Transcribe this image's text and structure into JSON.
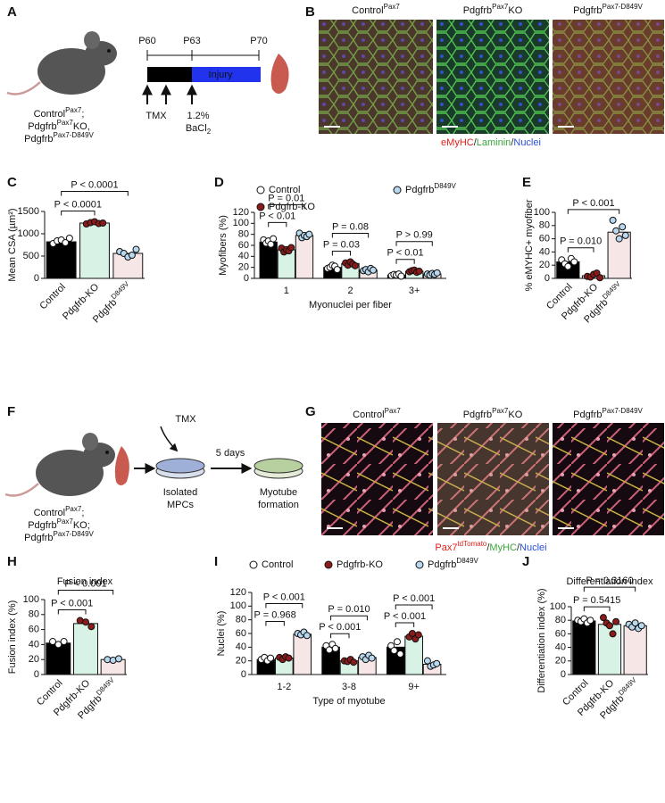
{
  "figure": {
    "panel_labels": [
      "A",
      "B",
      "C",
      "D",
      "E",
      "F",
      "G",
      "H",
      "I",
      "J"
    ],
    "panel_a": {
      "timepoints": [
        "P60",
        "P63",
        "P70"
      ],
      "injury": "Injury",
      "tmx": "TMX",
      "bacl2": {
        "text": "1.2%",
        "line2": "BaCl",
        "sub": "2"
      },
      "mouse_label": [
        {
          "text": "Control",
          "sup": "Pax7",
          "tail": ";"
        },
        {
          "text": "Pdgfrb",
          "sup": "Pax7",
          "tail": "KO,"
        },
        {
          "text": "Pdgfrb",
          "sup": "Pax7-D849V"
        }
      ]
    },
    "panel_b": {
      "labels": [
        {
          "text": "Control",
          "sup": "Pax7"
        },
        {
          "text": "Pdgfrb",
          "sup": "Pax7",
          "tail": "KO"
        },
        {
          "text": "Pdgfrb",
          "sup": "Pax7-D849V"
        }
      ],
      "caption": [
        {
          "text": "eMyHC",
          "color": "#e0201b"
        },
        {
          "text": "/",
          "color": "#222222"
        },
        {
          "text": "Laminin",
          "color": "#3aa53a"
        },
        {
          "text": "/",
          "color": "#222222"
        },
        {
          "text": "Nuclei",
          "color": "#2a4fd6"
        }
      ]
    },
    "panel_f": {
      "tmx": "TMX",
      "days": "5 days",
      "isolated": [
        "Isolated",
        "MPCs"
      ],
      "myotube": [
        "Myotube",
        "formation"
      ],
      "mouse_label": [
        {
          "text": "Control",
          "sup": "Pax7",
          "tail": ";"
        },
        {
          "text": "Pdgfrb",
          "sup": "Pax7",
          "tail": "KO;"
        },
        {
          "text": "Pdgfrb",
          "sup": "Pax7-D849V"
        }
      ]
    },
    "panel_g": {
      "labels": [
        {
          "text": "Control",
          "sup": "Pax7"
        },
        {
          "text": "Pdgfrb",
          "sup": "Pax7",
          "tail": "KO"
        },
        {
          "text": "Pdgfrb",
          "sup": "Pax7-D849V"
        }
      ],
      "caption": [
        {
          "text": "Pax7",
          "color": "#e0201b"
        },
        {
          "text": "tdTomato",
          "color": "#e0201b",
          "sup": true
        },
        {
          "text": "/",
          "color": "#222222"
        },
        {
          "text": "MyHC",
          "color": "#3aa53a"
        },
        {
          "text": "/",
          "color": "#222222"
        },
        {
          "text": "Nuclei",
          "color": "#2a4fd6"
        }
      ]
    }
  },
  "chart_data": [
    {
      "type": "bar",
      "ylabel": "Mean CSA (µm²)",
      "categories": [
        "Control",
        "Pdgfrb-KO",
        "Pdgfrb"
      ],
      "category_sup": [
        null,
        null,
        "D849V"
      ],
      "values": [
        820,
        1240,
        560
      ],
      "colors": [
        "#000000",
        "#d9f2e6",
        "#f6e6e6"
      ],
      "point_colors": [
        "#ffffff",
        "#8b1a1a",
        "#b8d8f0"
      ],
      "points": [
        [
          780,
          840,
          860,
          800,
          900
        ],
        [
          1220,
          1250,
          1270,
          1230,
          1240
        ],
        [
          600,
          560,
          480,
          520,
          650
        ]
      ],
      "ylim": [
        0,
        1500
      ],
      "yticks": [
        0,
        500,
        1000,
        1500
      ],
      "annotations": [
        "P < 0.0001",
        "P < 0.0001"
      ]
    },
    {
      "type": "grouped-bar",
      "ylabel": "Myofibers (%)",
      "xlabel": "Myonuclei per fiber",
      "categories": [
        "1",
        "2",
        "3+"
      ],
      "series": [
        {
          "name": "Control",
          "color": "#000000",
          "point_color": "#ffffff",
          "values": [
            66,
            20,
            6
          ],
          "points": [
            [
              70,
              64,
              68,
              62,
              72
            ],
            [
              18,
              20,
              24,
              22,
              16
            ],
            [
              5,
              7,
              6,
              8,
              4
            ]
          ]
        },
        {
          "name": "Pdgfrb-KO",
          "color": "#d9f2e6",
          "point_color": "#8b1a1a",
          "values": [
            52,
            27,
            13
          ],
          "points": [
            [
              55,
              48,
              52,
              50,
              56
            ],
            [
              28,
              24,
              30,
              26,
              23
            ],
            [
              12,
              14,
              15,
              11,
              13
            ]
          ]
        },
        {
          "name": "Pdgfrb",
          "name_sup": "D849V",
          "color": "#f6e6e6",
          "point_color": "#b8d8f0",
          "values": [
            78,
            15,
            8
          ],
          "points": [
            [
              82,
              74,
              78,
              76,
              80
            ],
            [
              14,
              16,
              12,
              18,
              15
            ],
            [
              8,
              6,
              9,
              7,
              10
            ]
          ]
        }
      ],
      "ylim": [
        0,
        120
      ],
      "yticks": [
        0,
        20,
        40,
        60,
        80,
        100,
        120
      ],
      "annotations": [
        "P < 0.01",
        "P = 0.01",
        "P = 0.03",
        "P = 0.08",
        "P < 0.01",
        "P > 0.99"
      ]
    },
    {
      "type": "bar",
      "ylabel": "% eMYHC+ myofiber",
      "categories": [
        "Control",
        "Pdgfrb-KO",
        "Pdgfrb"
      ],
      "category_sup": [
        null,
        null,
        "D849V"
      ],
      "values": [
        25,
        4,
        70
      ],
      "colors": [
        "#000000",
        "#d9f2e6",
        "#f6e6e6"
      ],
      "point_colors": [
        "#ffffff",
        "#8b1a1a",
        "#b8d8f0"
      ],
      "points": [
        [
          28,
          22,
          18,
          30,
          25
        ],
        [
          3,
          2,
          6,
          8,
          1
        ],
        [
          88,
          72,
          60,
          78,
          65
        ]
      ],
      "ylim": [
        0,
        100
      ],
      "yticks": [
        0,
        20,
        40,
        60,
        80,
        100
      ],
      "annotations": [
        "P = 0.010",
        "P < 0.001"
      ]
    },
    {
      "type": "bar",
      "title": "Fusion index",
      "ylabel": "Fusion index (%)",
      "categories": [
        "Control",
        "Pdgfrb-KO",
        "Pdgfrb"
      ],
      "category_sup": [
        null,
        null,
        "D849V"
      ],
      "values": [
        42,
        68,
        20
      ],
      "colors": [
        "#000000",
        "#d9f2e6",
        "#f6e6e6"
      ],
      "point_colors": [
        "#ffffff",
        "#8b1a1a",
        "#b8d8f0"
      ],
      "points": [
        [
          44,
          40,
          44
        ],
        [
          72,
          70,
          64
        ],
        [
          20,
          19,
          21
        ]
      ],
      "ylim": [
        0,
        100
      ],
      "yticks": [
        0,
        20,
        40,
        60,
        80,
        100
      ],
      "annotations": [
        "P < 0.001",
        "P < 0.001"
      ]
    },
    {
      "type": "grouped-bar",
      "ylabel": "Nuclei (%)",
      "xlabel": "Type of myotube",
      "categories": [
        "1-2",
        "3-8",
        "9+"
      ],
      "series": [
        {
          "name": "Control",
          "color": "#000000",
          "point_color": "#ffffff",
          "values": [
            22,
            40,
            40
          ],
          "points": [
            [
              22,
              25,
              20,
              24
            ],
            [
              42,
              36,
              44,
              38
            ],
            [
              42,
              35,
              48,
              30
            ]
          ]
        },
        {
          "name": "Pdgfrb-KO",
          "color": "#d9f2e6",
          "point_color": "#8b1a1a",
          "values": [
            24,
            20,
            56
          ],
          "points": [
            [
              25,
              22,
              26,
              24
            ],
            [
              20,
              19,
              22,
              18
            ],
            [
              55,
              60,
              52,
              58
            ]
          ]
        },
        {
          "name": "Pdgfrb",
          "name_sup": "D849V",
          "color": "#f6e6e6",
          "point_color": "#b8d8f0",
          "values": [
            59,
            25,
            15
          ],
          "points": [
            [
              60,
              58,
              62,
              57
            ],
            [
              26,
              22,
              28,
              24
            ],
            [
              20,
              12,
              14,
              16
            ]
          ]
        }
      ],
      "ylim": [
        0,
        120
      ],
      "yticks": [
        0,
        20,
        40,
        60,
        80,
        100,
        120
      ],
      "annotations": [
        "P = 0.968",
        "P < 0.001",
        "P < 0.001",
        "P = 0.010",
        "P < 0.001",
        "P < 0.001"
      ]
    },
    {
      "type": "bar",
      "title": "Differentiation index",
      "ylabel": "Differentiation index (%)",
      "categories": [
        "Control",
        "Pdgfrb-KO",
        "Pdgfrb"
      ],
      "category_sup": [
        null,
        null,
        "D849V"
      ],
      "values": [
        79,
        74,
        72
      ],
      "colors": [
        "#000000",
        "#d9f2e6",
        "#f6e6e6"
      ],
      "point_colors": [
        "#ffffff",
        "#8b1a1a",
        "#b8d8f0"
      ],
      "points": [
        [
          80,
          78,
          82,
          76,
          80
        ],
        [
          84,
          76,
          72,
          60,
          78
        ],
        [
          74,
          70,
          76,
          68,
          72
        ]
      ],
      "ylim": [
        0,
        100
      ],
      "yticks": [
        0,
        20,
        40,
        60,
        80,
        100
      ],
      "annotations": [
        "P = 0.5415",
        "P = 0.3160"
      ]
    }
  ]
}
